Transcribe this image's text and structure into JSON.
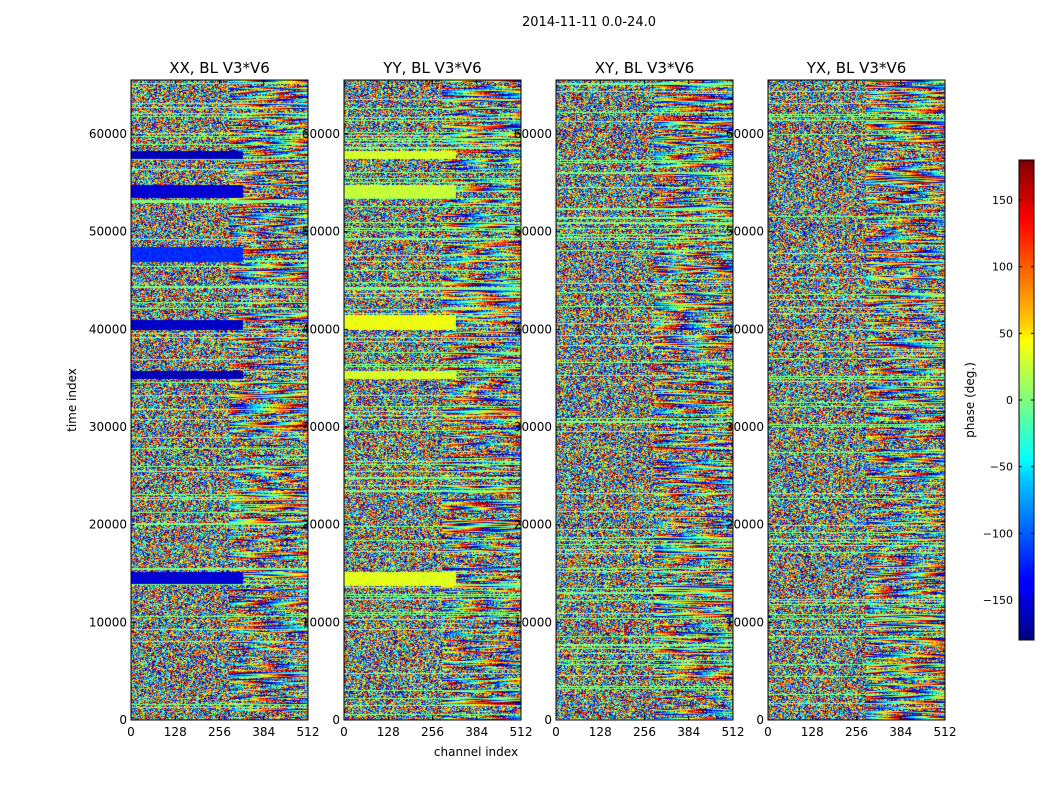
{
  "suptitle": "2014-11-11 0.0-24.0",
  "xlabel": "channel index",
  "ylabel": "time index",
  "colorbar": {
    "label": "phase (deg.)",
    "range": [
      -180,
      180
    ],
    "ticks": [
      -150,
      -100,
      -50,
      0,
      50,
      100,
      150
    ],
    "tick_labels": [
      "−150",
      "−100",
      "−50",
      "0",
      "50",
      "100",
      "150"
    ],
    "colormap": "jet"
  },
  "chart_data": [
    {
      "type": "heatmap",
      "title": "XX, BL V3*V6",
      "xlabel": "channel index",
      "ylabel": "time index",
      "xlim": [
        0,
        512
      ],
      "ylim": [
        0,
        65536
      ],
      "xticks": [
        0,
        128,
        256,
        384,
        512
      ],
      "yticks": [
        0,
        10000,
        20000,
        30000,
        40000,
        50000,
        60000
      ],
      "value_range": [
        -180,
        180
      ],
      "seed": 11,
      "bands": [
        {
          "t0": 57500,
          "t1": 58300,
          "phase": -160
        },
        {
          "t0": 53500,
          "t1": 54800,
          "phase": -150
        },
        {
          "t0": 40000,
          "t1": 41000,
          "phase": -155
        },
        {
          "t0": 35000,
          "t1": 35800,
          "phase": -160
        },
        {
          "t0": 14000,
          "t1": 15200,
          "phase": -150
        },
        {
          "t0": 47000,
          "t1": 48500,
          "phase": -120
        }
      ]
    },
    {
      "type": "heatmap",
      "title": "YY, BL V3*V6",
      "xlabel": "channel index",
      "ylabel": "time index",
      "xlim": [
        0,
        512
      ],
      "ylim": [
        0,
        65536
      ],
      "xticks": [
        0,
        128,
        256,
        384,
        512
      ],
      "yticks": [
        0,
        10000,
        20000,
        30000,
        40000,
        50000,
        60000
      ],
      "value_range": [
        -180,
        180
      ],
      "seed": 23,
      "bands": [
        {
          "t0": 57500,
          "t1": 58300,
          "phase": 30
        },
        {
          "t0": 53500,
          "t1": 54800,
          "phase": 25
        },
        {
          "t0": 40000,
          "t1": 41500,
          "phase": 40
        },
        {
          "t0": 35000,
          "t1": 35800,
          "phase": 30
        },
        {
          "t0": 13800,
          "t1": 15200,
          "phase": 35
        }
      ]
    },
    {
      "type": "heatmap",
      "title": "XY, BL V3*V6",
      "xlabel": "channel index",
      "ylabel": "time index",
      "xlim": [
        0,
        512
      ],
      "ylim": [
        0,
        65536
      ],
      "xticks": [
        0,
        128,
        256,
        384,
        512
      ],
      "yticks": [
        0,
        10000,
        20000,
        30000,
        40000,
        50000,
        60000
      ],
      "value_range": [
        -180,
        180
      ],
      "seed": 37,
      "bands": []
    },
    {
      "type": "heatmap",
      "title": "YX, BL V3*V6",
      "xlabel": "channel index",
      "ylabel": "time index",
      "xlim": [
        0,
        512
      ],
      "ylim": [
        0,
        65536
      ],
      "xticks": [
        0,
        128,
        256,
        384,
        512
      ],
      "yticks": [
        0,
        10000,
        20000,
        30000,
        40000,
        50000,
        60000
      ],
      "value_range": [
        -180,
        180
      ],
      "seed": 53,
      "bands": []
    }
  ]
}
